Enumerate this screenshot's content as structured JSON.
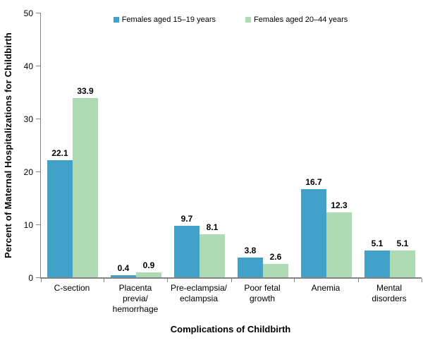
{
  "chart_data": {
    "type": "bar",
    "title": "",
    "xlabel": "Complications of Childbirth",
    "ylabel": "Percent of Maternal Hospitalizations for Childbirth",
    "categories": [
      "C-section",
      "Placenta\nprevia/\nhemorrhage",
      "Pre-eclampsia/\neclampsia",
      "Poor fetal\ngrowth",
      "Anemia",
      "Mental\ndisorders"
    ],
    "series": [
      {
        "name": "Females aged 15–19 years",
        "color": "#42A1C9",
        "values": [
          22.1,
          0.4,
          9.7,
          3.8,
          16.7,
          5.1
        ]
      },
      {
        "name": "Females aged 20–44 years",
        "color": "#AEDBB4",
        "values": [
          33.9,
          0.9,
          8.1,
          2.6,
          12.3,
          5.1
        ]
      }
    ],
    "ylim": [
      0,
      50
    ],
    "yticks": [
      0,
      10,
      20,
      30,
      40,
      50
    ],
    "grid": "off",
    "legend_position": "top-center",
    "value_labels": "above-bars, one decimal",
    "axis_color": "#848484"
  }
}
